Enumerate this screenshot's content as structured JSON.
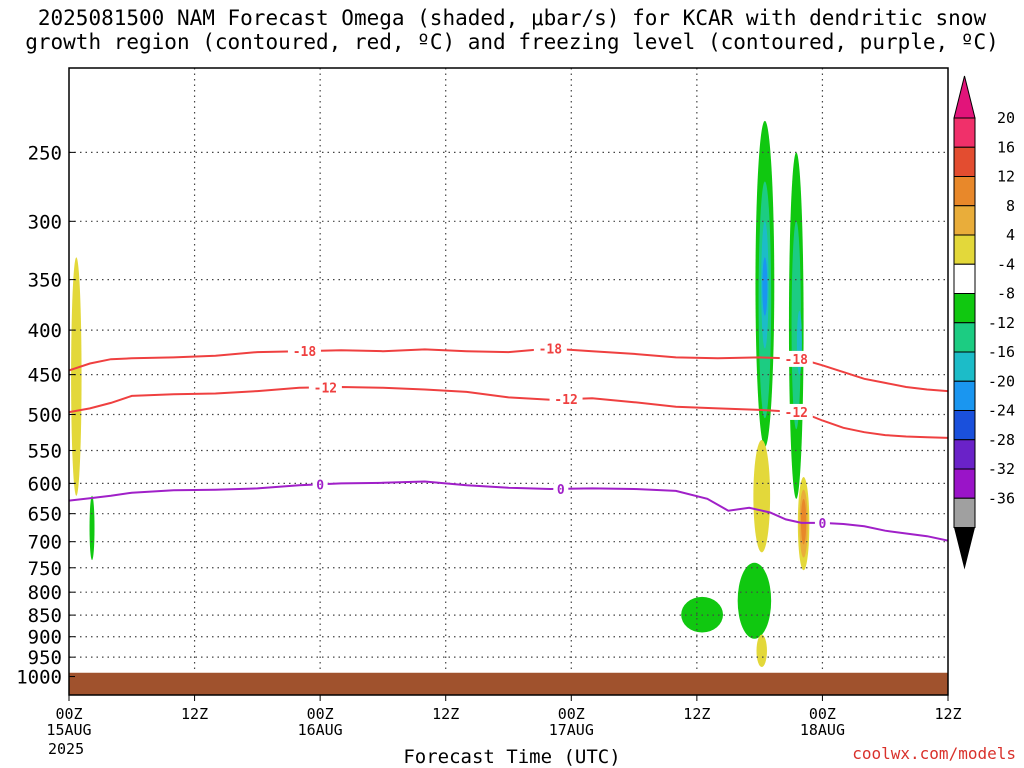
{
  "title": {
    "line1": "2025081500 NAM Forecast Omega (shaded, μbar/s) for KCAR with dendritic snow",
    "line2": "growth region (contoured, red, ºC) and freezing level (contoured, purple, ºC)"
  },
  "credit": "coolwx.com/models",
  "chart_data": {
    "type": "time-height contour",
    "xlabel": "Forecast Time (UTC)",
    "ylabel": "",
    "x_range_hours": [
      0,
      84
    ],
    "x_ticks": [
      {
        "hour": 0,
        "line1": "00Z",
        "line2": "15AUG"
      },
      {
        "hour": 12,
        "line1": "12Z",
        "line2": ""
      },
      {
        "hour": 24,
        "line1": "00Z",
        "line2": "16AUG"
      },
      {
        "hour": 36,
        "line1": "12Z",
        "line2": ""
      },
      {
        "hour": 48,
        "line1": "00Z",
        "line2": "17AUG"
      },
      {
        "hour": 60,
        "line1": "12Z",
        "line2": ""
      },
      {
        "hour": 72,
        "line1": "00Z",
        "line2": "18AUG"
      },
      {
        "hour": 84,
        "line1": "12Z",
        "line2": ""
      }
    ],
    "year_label": "2025",
    "y_log_scale": true,
    "y_range_hPa": [
      200,
      1050
    ],
    "y_ticks": [
      250,
      300,
      350,
      400,
      450,
      500,
      550,
      600,
      650,
      700,
      750,
      800,
      850,
      900,
      950,
      1000
    ],
    "grid": true,
    "colorbar": {
      "labels": [
        "20",
        "16",
        "12",
        "8",
        "4",
        "-4",
        "-8",
        "-12",
        "-16",
        "-20",
        "-24",
        "-28",
        "-32",
        "-36"
      ],
      "colors": [
        "#f0306a",
        "#e34d30",
        "#e8882a",
        "#e9ad3a",
        "#e3d83a",
        "#ffffff",
        "#10c810",
        "#1ccc82",
        "#1cbcc8",
        "#1a96f0",
        "#1a50dc",
        "#6a22c8",
        "#9a14c8",
        "#a0a0a0"
      ],
      "top_arrow": "#e2147a",
      "bottom_arrow": "#000000"
    },
    "series": [
      {
        "name": "-18",
        "color": "#ef4040",
        "x": [
          0,
          2,
          4,
          6,
          10,
          14,
          18,
          22,
          26,
          30,
          34,
          38,
          42,
          46,
          50,
          54,
          58,
          62,
          66,
          68.5,
          70,
          72,
          74,
          76,
          78,
          80,
          82,
          84
        ],
        "y": [
          445,
          437,
          432,
          431,
          430,
          428,
          424,
          423,
          422,
          423,
          421,
          423,
          424,
          420,
          423,
          426,
          430,
          431,
          430,
          431,
          432,
          439,
          447,
          455,
          460,
          465,
          468,
          470
        ],
        "labels": [
          {
            "x": 22.5,
            "text": "-18"
          },
          {
            "x": 46,
            "text": "-18"
          },
          {
            "x": 69.5,
            "text": "-18"
          }
        ]
      },
      {
        "name": "-12",
        "color": "#ef4040",
        "x": [
          0,
          2,
          4,
          6,
          10,
          14,
          18,
          22,
          26,
          30,
          34,
          38,
          42,
          46,
          50,
          54,
          58,
          62,
          66,
          68.5,
          70,
          72,
          74,
          76,
          78,
          80,
          82,
          84
        ],
        "y": [
          497,
          492,
          485,
          476,
          474,
          473,
          470,
          466,
          465,
          466,
          468,
          471,
          478,
          481,
          479,
          484,
          490,
          492,
          494,
          496,
          497,
          508,
          518,
          524,
          528,
          530,
          531,
          532
        ],
        "labels": [
          {
            "x": 24.5,
            "text": "-12"
          },
          {
            "x": 47.5,
            "text": "-12"
          },
          {
            "x": 69.5,
            "text": "-12"
          }
        ]
      },
      {
        "name": "0",
        "color": "#a020c8",
        "x": [
          0,
          2,
          4,
          6,
          10,
          14,
          18,
          22,
          26,
          30,
          34,
          38,
          42,
          46,
          50,
          54,
          58,
          61,
          63,
          65,
          67,
          68.5,
          70,
          72,
          74,
          76,
          78,
          80,
          82,
          84
        ],
        "y": [
          628,
          624,
          620,
          615,
          611,
          610,
          608,
          603,
          600,
          599,
          597,
          603,
          607,
          609,
          608,
          609,
          612,
          625,
          645,
          640,
          648,
          660,
          666,
          666,
          668,
          672,
          680,
          685,
          690,
          698
        ],
        "labels": [
          {
            "x": 24,
            "text": "0"
          },
          {
            "x": 47,
            "text": "0"
          },
          {
            "x": 72,
            "text": "0"
          }
        ]
      }
    ],
    "shaded_regions": [
      {
        "level": "4 to 8",
        "color": "#e3d83a",
        "x_center": 0.7,
        "x_halfwidth": 0.5,
        "y_top": 330,
        "y_bottom": 620
      },
      {
        "level": "-4 to -8",
        "color": "#10c810",
        "x_center": 2.2,
        "x_halfwidth": 0.15,
        "y_top": 620,
        "y_bottom": 735
      },
      {
        "level": "-4 to -8",
        "color": "#10c810",
        "x_center": 66.5,
        "x_halfwidth": 0.9,
        "y_top": 230,
        "y_bottom": 545
      },
      {
        "level": "-8 to -12",
        "color": "#1ccc82",
        "x_center": 66.5,
        "x_halfwidth": 0.6,
        "y_top": 270,
        "y_bottom": 505
      },
      {
        "level": "-12 to -16",
        "color": "#1cbcc8",
        "x_center": 66.5,
        "x_halfwidth": 0.35,
        "y_top": 300,
        "y_bottom": 420
      },
      {
        "level": "-16 to -20",
        "color": "#1a96f0",
        "x_center": 66.5,
        "x_halfwidth": 0.15,
        "y_top": 330,
        "y_bottom": 385
      },
      {
        "level": "-4 to -8",
        "color": "#10c810",
        "x_center": 69.5,
        "x_halfwidth": 0.7,
        "y_top": 250,
        "y_bottom": 625
      },
      {
        "level": "-8 to -12",
        "color": "#1ccc82",
        "x_center": 69.5,
        "x_halfwidth": 0.45,
        "y_top": 300,
        "y_bottom": 520
      },
      {
        "level": "-12 to -16",
        "color": "#1cbcc8",
        "x_center": 69.8,
        "x_halfwidth": 0.2,
        "y_top": 380,
        "y_bottom": 450
      },
      {
        "level": "4 to 8",
        "color": "#e3d83a",
        "x_center": 66.2,
        "x_halfwidth": 0.8,
        "y_top": 535,
        "y_bottom": 720
      },
      {
        "level": "4 to 8",
        "color": "#e3d83a",
        "x_center": 70.2,
        "x_halfwidth": 0.55,
        "y_top": 590,
        "y_bottom": 755
      },
      {
        "level": "8 to 12",
        "color": "#e9ad3a",
        "x_center": 70.2,
        "x_halfwidth": 0.4,
        "y_top": 610,
        "y_bottom": 730
      },
      {
        "level": "12 to 16",
        "color": "#e8882a",
        "x_center": 70.2,
        "x_halfwidth": 0.25,
        "y_top": 625,
        "y_bottom": 705
      },
      {
        "level": "-4 to -8",
        "color": "#10c810",
        "x_center": 60.5,
        "x_halfwidth": 2.0,
        "y_top": 810,
        "y_bottom": 890
      },
      {
        "level": "-4 to -8",
        "color": "#10c810",
        "x_center": 65.5,
        "x_halfwidth": 1.6,
        "y_top": 740,
        "y_bottom": 905
      },
      {
        "level": "4 to 8",
        "color": "#e3d83a",
        "x_center": 66.2,
        "x_halfwidth": 0.5,
        "y_top": 895,
        "y_bottom": 975
      }
    ],
    "surface": {
      "color": "#a0522d",
      "top_hPa": 990
    }
  }
}
